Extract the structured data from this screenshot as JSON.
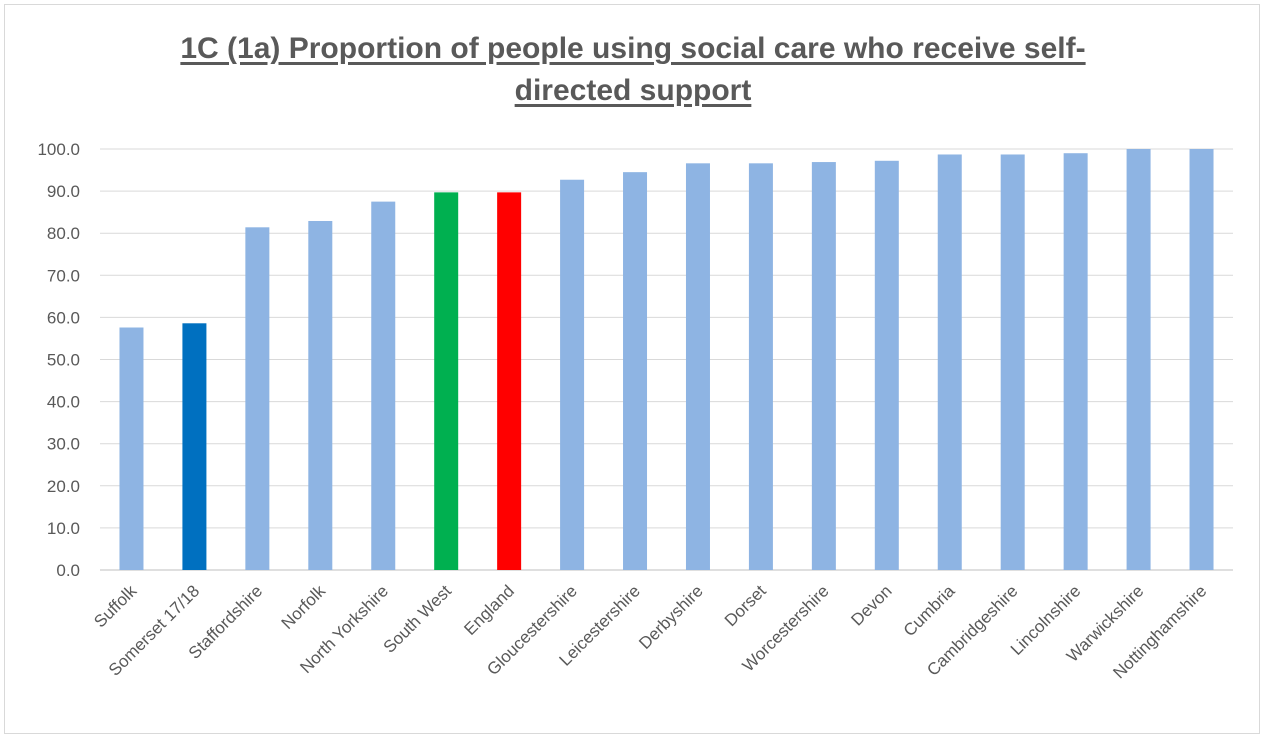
{
  "chart_data": {
    "type": "bar",
    "title_lines": [
      "1C (1a) Proportion of people using social care who receive self-",
      "directed support"
    ],
    "categories": [
      "Suffolk",
      "Somerset 17/18",
      "Staffordshire",
      "Norfolk",
      "North Yorkshire",
      "South West",
      "England",
      "Gloucestershire",
      "Leicestershire",
      "Derbyshire",
      "Dorset",
      "Worcestershire",
      "Devon",
      "Cumbria",
      "Cambridgeshire",
      "Lincolnshire",
      "Warwickshire",
      "Nottinghamshire"
    ],
    "values": [
      57.6,
      58.6,
      81.4,
      82.9,
      87.5,
      89.7,
      89.7,
      92.7,
      94.5,
      96.6,
      96.6,
      96.9,
      97.2,
      98.7,
      98.7,
      99.0,
      100.0,
      100.0
    ],
    "colors": [
      "#8eb4e3",
      "#0070c0",
      "#8eb4e3",
      "#8eb4e3",
      "#8eb4e3",
      "#00b050",
      "#ff0000",
      "#8eb4e3",
      "#8eb4e3",
      "#8eb4e3",
      "#8eb4e3",
      "#8eb4e3",
      "#8eb4e3",
      "#8eb4e3",
      "#8eb4e3",
      "#8eb4e3",
      "#8eb4e3",
      "#8eb4e3"
    ],
    "ylim": [
      0,
      100
    ],
    "yticks": [
      "0.0",
      "10.0",
      "20.0",
      "30.0",
      "40.0",
      "50.0",
      "60.0",
      "70.0",
      "80.0",
      "90.0",
      "100.0"
    ],
    "grid": true,
    "legend": "none"
  }
}
